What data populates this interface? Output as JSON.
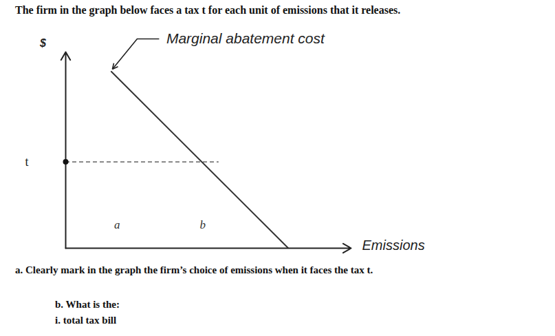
{
  "chart_data": {
    "type": "line",
    "title": "The firm in the graph below faces a tax t for each unit of emissions that it releases.",
    "x_label": "Emissions",
    "y_label": "$",
    "x": [
      16,
      78
    ],
    "series": [
      {
        "name": "Marginal abatement cost",
        "color": "#333333",
        "values": [
          90,
          0
        ]
      }
    ],
    "xlim": [
      0,
      100
    ],
    "ylim": [
      0,
      100
    ],
    "xticks": [],
    "yticks": [
      {
        "value": 44,
        "label": "t"
      }
    ],
    "tick_labels": "y",
    "grid": false,
    "annotations": [
      {
        "text": "a",
        "x": 18,
        "y": 12
      },
      {
        "text": "b",
        "x": 48,
        "y": 12
      }
    ]
  },
  "questions": [
    "a. Clearly mark in the graph the firm’s choice of emissions when it faces the tax t.",
    "b. What is the:",
    "i. total tax bill"
  ]
}
